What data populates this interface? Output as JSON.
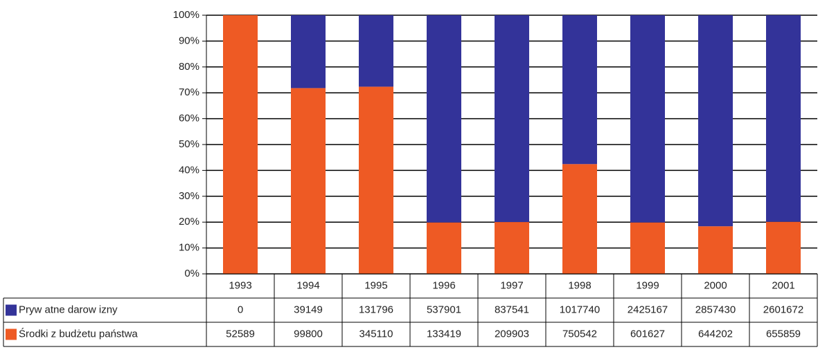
{
  "chart_data": {
    "type": "bar",
    "stacking": "percent",
    "categories": [
      "1993",
      "1994",
      "1995",
      "1996",
      "1997",
      "1998",
      "1999",
      "2000",
      "2001"
    ],
    "series": [
      {
        "name": "Pryw atne darow izny",
        "color": "#333399",
        "values": [
          0,
          39149,
          131796,
          537901,
          837541,
          1017740,
          2425167,
          2857430,
          2601672
        ]
      },
      {
        "name": "Środki z budżetu państwa",
        "color": "#ee5a24",
        "values": [
          52589,
          99800,
          345110,
          133419,
          209903,
          750542,
          601627,
          644202,
          655859
        ]
      }
    ],
    "ylim": [
      0,
      100
    ],
    "yticks": [
      {
        "value": 0,
        "label": "0%"
      },
      {
        "value": 10,
        "label": "10%"
      },
      {
        "value": 20,
        "label": "20%"
      },
      {
        "value": 30,
        "label": "30%"
      },
      {
        "value": 40,
        "label": "40%"
      },
      {
        "value": 50,
        "label": "50%"
      },
      {
        "value": 60,
        "label": "60%"
      },
      {
        "value": 70,
        "label": "70%"
      },
      {
        "value": 80,
        "label": "80%"
      },
      {
        "value": 90,
        "label": "90%"
      },
      {
        "value": 100,
        "label": "100%"
      }
    ],
    "grid": true
  }
}
